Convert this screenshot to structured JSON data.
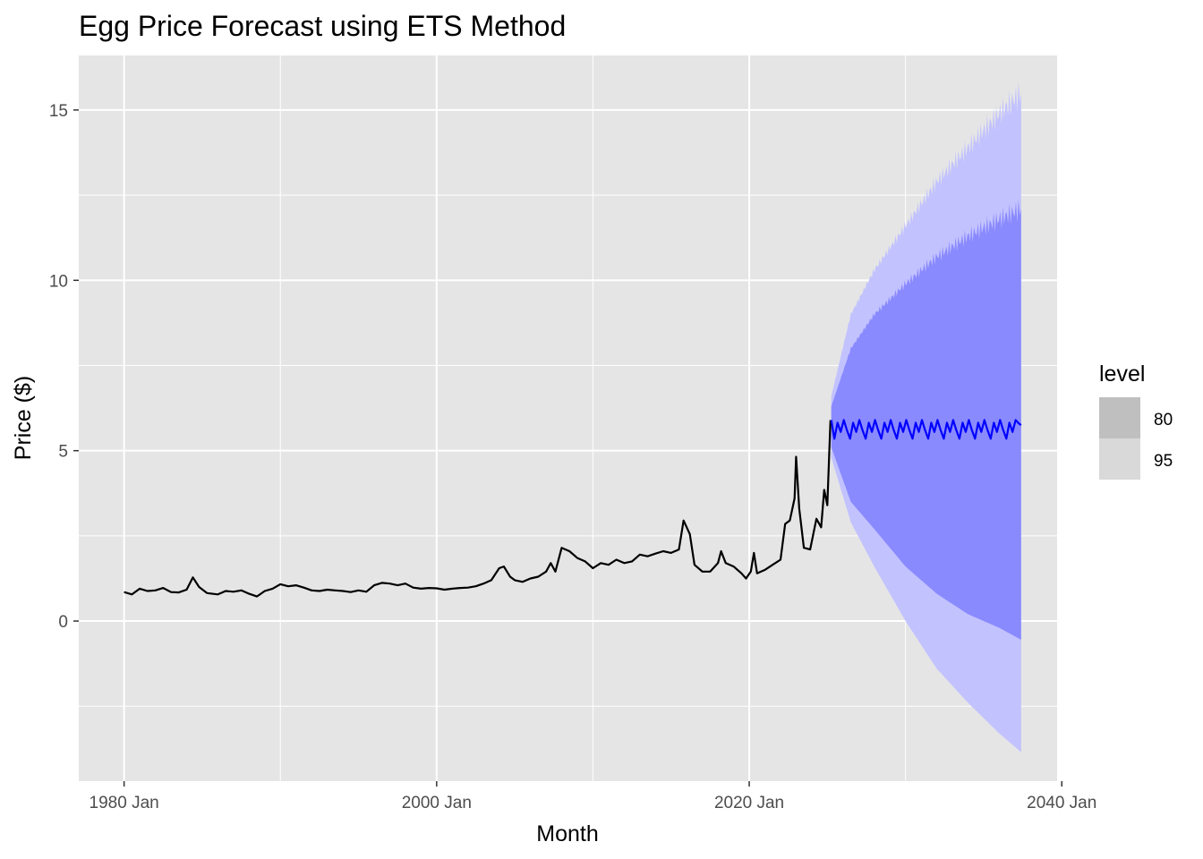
{
  "chart_data": {
    "type": "line",
    "title": "Egg Price Forecast using ETS Method",
    "xlabel": "Month",
    "ylabel": "Price ($)",
    "xlim": [
      1977.1,
      2039.7
    ],
    "ylim": [
      -4.7,
      16.6
    ],
    "x_ticks": [
      {
        "value": 1980,
        "label": "1980 Jan"
      },
      {
        "value": 2000,
        "label": "2000 Jan"
      },
      {
        "value": 2020,
        "label": "2020 Jan"
      },
      {
        "value": 2040,
        "label": "2040 Jan"
      }
    ],
    "x_minor_ticks": [
      1990,
      2010,
      2030
    ],
    "y_ticks": [
      {
        "value": 0,
        "label": "0"
      },
      {
        "value": 5,
        "label": "5"
      },
      {
        "value": 10,
        "label": "10"
      },
      {
        "value": 15,
        "label": "15"
      }
    ],
    "y_minor_ticks": [
      -2.5,
      2.5,
      7.5,
      12.5
    ],
    "grid": true,
    "legend": {
      "title": "level",
      "position": "right",
      "items": [
        {
          "label": "80",
          "color": "#bfbfbf"
        },
        {
          "label": "95",
          "color": "#d9d9d9"
        }
      ]
    },
    "colors": {
      "panel": "#e5e5e5",
      "grid": "#ffffff",
      "history": "#000000",
      "forecast": "#0000ff",
      "band95": "#c2c2ff",
      "band80": "#8a8aff"
    },
    "series": [
      {
        "kind": "history",
        "points": [
          [
            1980.0,
            0.85
          ],
          [
            1980.5,
            0.78
          ],
          [
            1981.0,
            0.95
          ],
          [
            1981.5,
            0.88
          ],
          [
            1982.0,
            0.9
          ],
          [
            1982.5,
            0.97
          ],
          [
            1983.0,
            0.85
          ],
          [
            1983.5,
            0.84
          ],
          [
            1984.0,
            0.92
          ],
          [
            1984.4,
            1.28
          ],
          [
            1984.8,
            1.0
          ],
          [
            1985.3,
            0.82
          ],
          [
            1986.0,
            0.78
          ],
          [
            1986.5,
            0.88
          ],
          [
            1987.0,
            0.86
          ],
          [
            1987.5,
            0.9
          ],
          [
            1988.0,
            0.8
          ],
          [
            1988.5,
            0.72
          ],
          [
            1989.0,
            0.88
          ],
          [
            1989.5,
            0.95
          ],
          [
            1990.0,
            1.08
          ],
          [
            1990.5,
            1.02
          ],
          [
            1991.0,
            1.05
          ],
          [
            1991.5,
            0.98
          ],
          [
            1992.0,
            0.9
          ],
          [
            1992.5,
            0.88
          ],
          [
            1993.0,
            0.92
          ],
          [
            1993.5,
            0.9
          ],
          [
            1994.0,
            0.88
          ],
          [
            1994.5,
            0.85
          ],
          [
            1995.0,
            0.9
          ],
          [
            1995.5,
            0.86
          ],
          [
            1996.0,
            1.05
          ],
          [
            1996.5,
            1.12
          ],
          [
            1997.0,
            1.1
          ],
          [
            1997.5,
            1.05
          ],
          [
            1998.0,
            1.1
          ],
          [
            1998.5,
            0.98
          ],
          [
            1999.0,
            0.95
          ],
          [
            1999.5,
            0.97
          ],
          [
            2000.0,
            0.96
          ],
          [
            2000.5,
            0.92
          ],
          [
            2001.0,
            0.95
          ],
          [
            2001.5,
            0.97
          ],
          [
            2002.0,
            0.98
          ],
          [
            2002.5,
            1.02
          ],
          [
            2003.0,
            1.1
          ],
          [
            2003.5,
            1.2
          ],
          [
            2004.0,
            1.55
          ],
          [
            2004.3,
            1.6
          ],
          [
            2004.7,
            1.3
          ],
          [
            2005.0,
            1.2
          ],
          [
            2005.5,
            1.15
          ],
          [
            2006.0,
            1.25
          ],
          [
            2006.5,
            1.3
          ],
          [
            2007.0,
            1.45
          ],
          [
            2007.3,
            1.7
          ],
          [
            2007.6,
            1.45
          ],
          [
            2008.0,
            2.15
          ],
          [
            2008.5,
            2.05
          ],
          [
            2009.0,
            1.85
          ],
          [
            2009.5,
            1.75
          ],
          [
            2010.0,
            1.55
          ],
          [
            2010.5,
            1.7
          ],
          [
            2011.0,
            1.65
          ],
          [
            2011.5,
            1.8
          ],
          [
            2012.0,
            1.7
          ],
          [
            2012.5,
            1.75
          ],
          [
            2013.0,
            1.95
          ],
          [
            2013.5,
            1.9
          ],
          [
            2014.0,
            1.98
          ],
          [
            2014.5,
            2.05
          ],
          [
            2015.0,
            2.0
          ],
          [
            2015.5,
            2.1
          ],
          [
            2015.8,
            2.95
          ],
          [
            2016.2,
            2.55
          ],
          [
            2016.5,
            1.65
          ],
          [
            2017.0,
            1.45
          ],
          [
            2017.5,
            1.45
          ],
          [
            2018.0,
            1.7
          ],
          [
            2018.2,
            2.05
          ],
          [
            2018.5,
            1.7
          ],
          [
            2019.0,
            1.6
          ],
          [
            2019.5,
            1.4
          ],
          [
            2019.8,
            1.25
          ],
          [
            2020.1,
            1.45
          ],
          [
            2020.3,
            2.0
          ],
          [
            2020.5,
            1.4
          ],
          [
            2021.0,
            1.5
          ],
          [
            2021.5,
            1.65
          ],
          [
            2022.0,
            1.8
          ],
          [
            2022.3,
            2.85
          ],
          [
            2022.6,
            2.95
          ],
          [
            2022.9,
            3.6
          ],
          [
            2023.0,
            4.82
          ],
          [
            2023.2,
            3.3
          ],
          [
            2023.5,
            2.15
          ],
          [
            2023.9,
            2.1
          ],
          [
            2024.1,
            2.55
          ],
          [
            2024.3,
            3.0
          ],
          [
            2024.6,
            2.75
          ],
          [
            2024.8,
            3.85
          ],
          [
            2025.0,
            3.4
          ],
          [
            2025.2,
            5.9
          ]
        ]
      },
      {
        "kind": "forecast",
        "name": "",
        "x_start": 2025.25,
        "x_end": 2037.4,
        "mean_points": [
          [
            2025.25,
            5.9
          ],
          [
            2025.45,
            5.35
          ],
          [
            2025.65,
            5.82
          ],
          [
            2025.85,
            5.55
          ],
          [
            2026.05,
            5.9
          ],
          [
            2026.25,
            5.6
          ],
          [
            2026.45,
            5.35
          ],
          [
            2026.65,
            5.82
          ],
          [
            2026.85,
            5.55
          ],
          [
            2027.05,
            5.9
          ],
          [
            2027.25,
            5.6
          ],
          [
            2027.45,
            5.35
          ],
          [
            2027.65,
            5.82
          ],
          [
            2027.85,
            5.55
          ],
          [
            2028.05,
            5.9
          ],
          [
            2028.25,
            5.6
          ],
          [
            2028.45,
            5.35
          ],
          [
            2028.65,
            5.82
          ],
          [
            2028.85,
            5.55
          ],
          [
            2029.05,
            5.9
          ],
          [
            2029.25,
            5.6
          ],
          [
            2029.45,
            5.35
          ],
          [
            2029.65,
            5.82
          ],
          [
            2029.85,
            5.55
          ],
          [
            2030.05,
            5.9
          ],
          [
            2030.25,
            5.6
          ],
          [
            2030.45,
            5.35
          ],
          [
            2030.65,
            5.82
          ],
          [
            2030.85,
            5.55
          ],
          [
            2031.05,
            5.9
          ],
          [
            2031.25,
            5.6
          ],
          [
            2031.45,
            5.35
          ],
          [
            2031.65,
            5.82
          ],
          [
            2031.85,
            5.55
          ],
          [
            2032.05,
            5.9
          ],
          [
            2032.25,
            5.6
          ],
          [
            2032.45,
            5.35
          ],
          [
            2032.65,
            5.82
          ],
          [
            2032.85,
            5.55
          ],
          [
            2033.05,
            5.9
          ],
          [
            2033.25,
            5.6
          ],
          [
            2033.45,
            5.35
          ],
          [
            2033.65,
            5.82
          ],
          [
            2033.85,
            5.55
          ],
          [
            2034.05,
            5.9
          ],
          [
            2034.25,
            5.6
          ],
          [
            2034.45,
            5.35
          ],
          [
            2034.65,
            5.82
          ],
          [
            2034.85,
            5.55
          ],
          [
            2035.05,
            5.9
          ],
          [
            2035.25,
            5.6
          ],
          [
            2035.45,
            5.35
          ],
          [
            2035.65,
            5.82
          ],
          [
            2035.85,
            5.55
          ],
          [
            2036.05,
            5.9
          ],
          [
            2036.25,
            5.6
          ],
          [
            2036.45,
            5.35
          ],
          [
            2036.65,
            5.82
          ],
          [
            2036.85,
            5.55
          ],
          [
            2037.05,
            5.9
          ],
          [
            2037.25,
            5.8
          ],
          [
            2037.4,
            5.75
          ]
        ],
        "band80_upper": [
          [
            2025.25,
            6.3
          ],
          [
            2026.5,
            8.0
          ],
          [
            2028.0,
            9.0
          ],
          [
            2030.0,
            9.9
          ],
          [
            2032.0,
            10.7
          ],
          [
            2034.0,
            11.3
          ],
          [
            2036.0,
            11.8
          ],
          [
            2037.4,
            12.1
          ]
        ],
        "band80_lower": [
          [
            2025.25,
            5.1
          ],
          [
            2026.5,
            3.5
          ],
          [
            2028.0,
            2.7
          ],
          [
            2030.0,
            1.6
          ],
          [
            2032.0,
            0.8
          ],
          [
            2034.0,
            0.2
          ],
          [
            2036.0,
            -0.2
          ],
          [
            2037.4,
            -0.55
          ]
        ],
        "band95_upper": [
          [
            2025.25,
            6.6
          ],
          [
            2026.5,
            9.0
          ],
          [
            2028.0,
            10.3
          ],
          [
            2030.0,
            11.6
          ],
          [
            2032.0,
            12.9
          ],
          [
            2034.0,
            13.9
          ],
          [
            2036.0,
            14.9
          ],
          [
            2037.4,
            15.5
          ]
        ],
        "band95_lower": [
          [
            2025.25,
            4.8
          ],
          [
            2026.5,
            2.9
          ],
          [
            2028.0,
            1.6
          ],
          [
            2030.0,
            0.0
          ],
          [
            2032.0,
            -1.4
          ],
          [
            2034.0,
            -2.4
          ],
          [
            2036.0,
            -3.3
          ],
          [
            2037.4,
            -3.85
          ]
        ]
      }
    ]
  }
}
